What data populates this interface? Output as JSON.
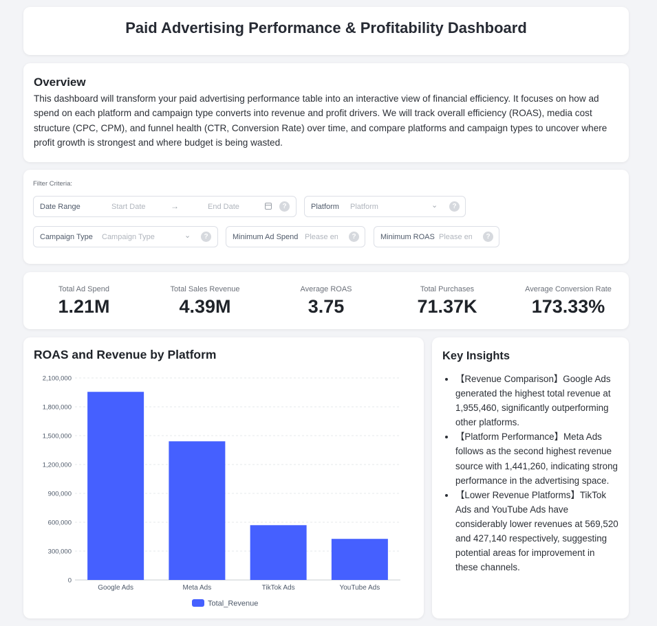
{
  "header": {
    "title": "Paid Advertising Performance & Profitability Dashboard"
  },
  "overview": {
    "heading": "Overview",
    "body": "This dashboard will transform your paid advertising performance table into an interactive view of financial efficiency. It focuses on how ad spend on each platform and campaign type converts into revenue and profit drivers. We will track overall efficiency (ROAS), media cost structure (CPC, CPM), and funnel health (CTR, Conversion Rate) over time, and compare platforms and campaign types to uncover where profit growth is strongest and where budget is being wasted."
  },
  "filters": {
    "caption": "Filter Criteria:",
    "date_range": {
      "label": "Date Range",
      "start_placeholder": "Start Date",
      "end_placeholder": "End Date"
    },
    "platform": {
      "label": "Platform",
      "placeholder": "Platform"
    },
    "campaign_type": {
      "label": "Campaign Type",
      "placeholder": "Campaign Type"
    },
    "min_ad_spend": {
      "label": "Minimum Ad Spend",
      "placeholder": "Please ent"
    },
    "min_roas": {
      "label": "Minimum ROAS",
      "placeholder": "Please ent"
    },
    "help_glyph": "?"
  },
  "kpis": [
    {
      "label": "Total Ad Spend",
      "value": "1.21M"
    },
    {
      "label": "Total Sales Revenue",
      "value": "4.39M"
    },
    {
      "label": "Average ROAS",
      "value": "3.75"
    },
    {
      "label": "Total Purchases",
      "value": "71.37K"
    },
    {
      "label": "Average Conversion Rate",
      "value": "173.33%"
    }
  ],
  "chart_section": {
    "heading": "ROAS and Revenue by Platform"
  },
  "chart_data": {
    "type": "bar",
    "title": "ROAS and Revenue by Platform",
    "categories": [
      "Google Ads",
      "Meta Ads",
      "TikTok Ads",
      "YouTube Ads"
    ],
    "series": [
      {
        "name": "Total_Revenue",
        "values": [
          1955460,
          1441260,
          569520,
          427140
        ],
        "color": "#4560ff"
      }
    ],
    "yticks": [
      "0",
      "300,000",
      "600,000",
      "900,000",
      "1,200,000",
      "1,500,000",
      "1,800,000",
      "2,100,000"
    ],
    "ylim": [
      0,
      2100000
    ],
    "grid": true,
    "legend": "bottom-center"
  },
  "insights": {
    "heading": "Key Insights",
    "items": [
      "【Revenue Comparison】Google Ads generated the highest total revenue at 1,955,460, significantly outperforming other platforms.",
      "【Platform Performance】Meta Ads follows as the second highest revenue source with 1,441,260, indicating strong performance in the advertising space.",
      "【Lower Revenue Platforms】TikTok Ads and YouTube Ads have considerably lower revenues at 569,520 and 427,140 respectively, suggesting potential areas for improvement in these channels."
    ]
  }
}
